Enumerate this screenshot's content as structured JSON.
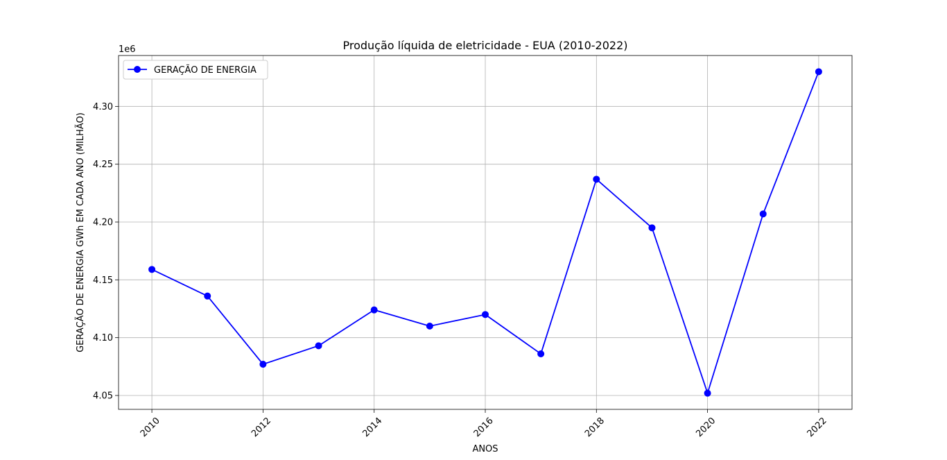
{
  "chart_data": {
    "type": "line",
    "title": "Produção líquida de eletricidade - EUA (2010-2022)",
    "xlabel": "ANOS",
    "ylabel": "GERAÇÃO DE ENERGIA GWh EM CADA ANO (MILHÃO)",
    "y_offset_label": "1e6",
    "x": [
      2010,
      2011,
      2012,
      2013,
      2014,
      2015,
      2016,
      2017,
      2018,
      2019,
      2020,
      2021,
      2022
    ],
    "series": [
      {
        "name": "GERAÇÃO DE ENERGIA",
        "color": "#0000ff",
        "marker": "circle",
        "values": [
          4159000,
          4136000,
          4077000,
          4093000,
          4124000,
          4110000,
          4120000,
          4086000,
          4237000,
          4195000,
          4052000,
          4207000,
          4330000
        ]
      }
    ],
    "x_ticks": [
      "2010",
      "2012",
      "2014",
      "2016",
      "2018",
      "2020",
      "2022"
    ],
    "y_ticks": [
      "4.05",
      "4.10",
      "4.15",
      "4.20",
      "4.25",
      "4.30"
    ],
    "xlim": [
      2009.4,
      2022.6
    ],
    "ylim": [
      4038000,
      4344000
    ],
    "grid": true,
    "legend_position": "top-left"
  }
}
